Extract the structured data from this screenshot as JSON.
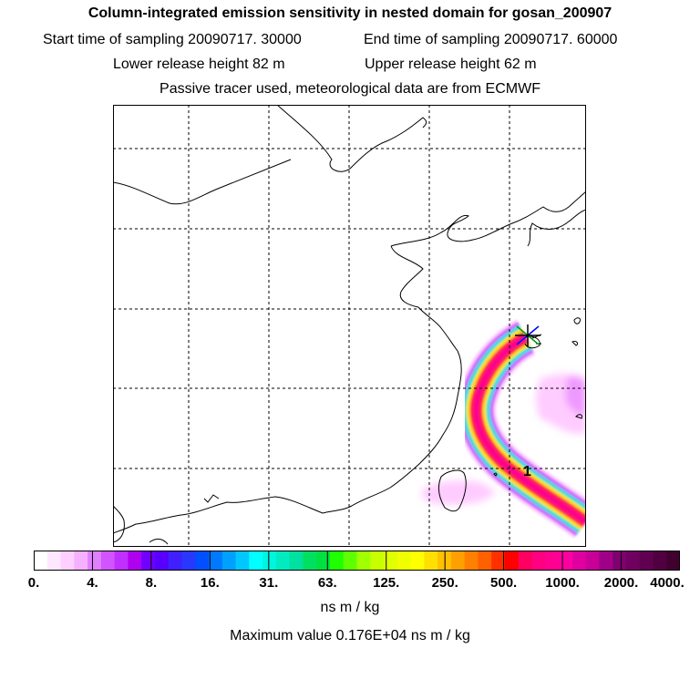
{
  "header": {
    "title": "Column-integrated emission sensitivity in nested domain for gosan_200907",
    "start_label": "Start time of sampling 20090717. 30000",
    "end_label": "End time of sampling 20090717. 60000",
    "lower_label": "Lower release height   82 m",
    "upper_label": "Upper release height   62 m",
    "tracer_line": "Passive tracer used, meteorological data are from ECMWF"
  },
  "map": {
    "station_marker_label": "1",
    "colors": {
      "coast": "#000000",
      "grid": "#000000",
      "plume": [
        "#ffccff",
        "#cc66ff",
        "#00e0e0",
        "#ffe000",
        "#ff2050",
        "#ff0090"
      ]
    }
  },
  "colorbar": {
    "tick_labels": [
      "0.",
      "4.",
      "8.",
      "16.",
      "31.",
      "63.",
      "125.",
      "250.",
      "500.",
      "1000.",
      "2000.",
      "4000."
    ],
    "colors": [
      "#ffffff",
      "#ffe8ff",
      "#ffd0ff",
      "#f5b0ff",
      "#e080ff",
      "#d055ff",
      "#c030ff",
      "#b000f0",
      "#7000ff",
      "#5800ff",
      "#4020ff",
      "#2838ff",
      "#0050ff",
      "#0078ff",
      "#00a0ff",
      "#00c8ff",
      "#00ffff",
      "#00f5e0",
      "#00ebc0",
      "#00e0a0",
      "#00e060",
      "#00e040",
      "#20ff00",
      "#60ff00",
      "#a0ff00",
      "#c8ff00",
      "#e0ff00",
      "#f0ff00",
      "#ffff00",
      "#ffe000",
      "#ffc000",
      "#ffa000",
      "#ff8000",
      "#ff6000",
      "#ff3000",
      "#ff0000",
      "#ff0060",
      "#ff0080",
      "#ff0090",
      "#ff00a0",
      "#e000a0",
      "#c80098",
      "#a00088",
      "#800070",
      "#700060",
      "#600050",
      "#500040",
      "#400030"
    ],
    "units": "ns m / kg",
    "max_value": "Maximum value  0.176E+04 ns m / kg"
  }
}
